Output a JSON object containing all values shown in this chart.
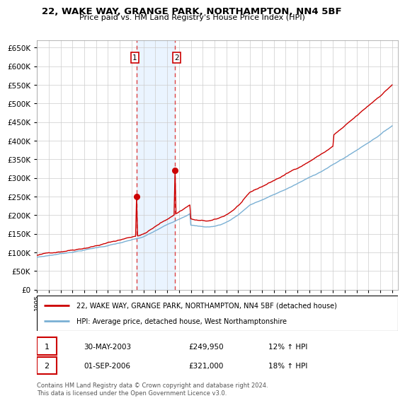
{
  "title": "22, WAKE WAY, GRANGE PARK, NORTHAMPTON, NN4 5BF",
  "subtitle": "Price paid vs. HM Land Registry's House Price Index (HPI)",
  "ylim": [
    0,
    670000
  ],
  "yticks": [
    0,
    50000,
    100000,
    150000,
    200000,
    250000,
    300000,
    350000,
    400000,
    450000,
    500000,
    550000,
    600000,
    650000
  ],
  "xlim_start": 1995.0,
  "xlim_end": 2025.5,
  "background_color": "#ffffff",
  "plot_bg_color": "#ffffff",
  "grid_color": "#cccccc",
  "sale1_x": 2003.41,
  "sale1_y": 249950,
  "sale2_x": 2006.67,
  "sale2_y": 321000,
  "legend_line1": "22, WAKE WAY, GRANGE PARK, NORTHAMPTON, NN4 5BF (detached house)",
  "legend_line2": "HPI: Average price, detached house, West Northamptonshire",
  "table_row1_date": "30-MAY-2003",
  "table_row1_price": "£249,950",
  "table_row1_hpi": "12% ↑ HPI",
  "table_row2_date": "01-SEP-2006",
  "table_row2_price": "£321,000",
  "table_row2_hpi": "18% ↑ HPI",
  "footer": "Contains HM Land Registry data © Crown copyright and database right 2024.\nThis data is licensed under the Open Government Licence v3.0.",
  "hpi_color": "#7ab0d4",
  "price_color": "#cc0000",
  "marker_color": "#cc0000",
  "shade_color": "#ddeeff"
}
